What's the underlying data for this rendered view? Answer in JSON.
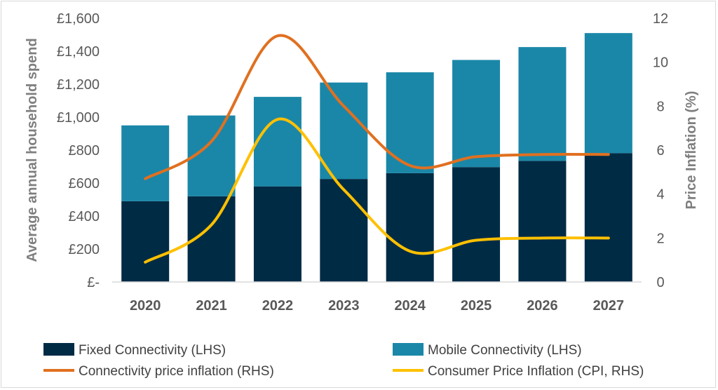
{
  "chart_data": {
    "type": "bar",
    "stacked": true,
    "categories": [
      "2020",
      "2021",
      "2022",
      "2023",
      "2024",
      "2025",
      "2026",
      "2027"
    ],
    "series": [
      {
        "name": "Fixed Connectivity (LHS)",
        "type": "bar",
        "axis": "left",
        "color": "#002b45",
        "values": [
          490,
          520,
          580,
          625,
          660,
          697,
          735,
          782
        ]
      },
      {
        "name": "Mobile Connectivity (LHS)",
        "type": "bar",
        "axis": "left",
        "color": "#1a87a8",
        "values": [
          460,
          490,
          543,
          585,
          612,
          650,
          690,
          728
        ]
      },
      {
        "name": "Connectivity price inflation (RHS)",
        "type": "line",
        "axis": "right",
        "color": "#e07020",
        "values": [
          4.7,
          6.4,
          11.2,
          8.0,
          5.3,
          5.7,
          5.8,
          5.8
        ]
      },
      {
        "name": "Consumer Price Inflation (CPI, RHS)",
        "type": "line",
        "axis": "right",
        "color": "#ffc000",
        "values": [
          0.9,
          2.6,
          7.4,
          4.2,
          1.4,
          1.9,
          2.0,
          2.0
        ]
      }
    ],
    "y_left": {
      "label": "Average annual household spend",
      "ylim": [
        0,
        1600
      ],
      "ticks": [
        0,
        200,
        400,
        600,
        800,
        1000,
        1200,
        1400,
        1600
      ],
      "tick_labels": [
        "£-",
        "£200",
        "£400",
        "£600",
        "£800",
        "£1,000",
        "£1,200",
        "£1,400",
        "£1,600"
      ]
    },
    "y_right": {
      "label": "Price Inflation (%)",
      "ylim": [
        0,
        12
      ],
      "ticks": [
        0,
        2,
        4,
        6,
        8,
        10,
        12
      ],
      "tick_labels": [
        "0",
        "2",
        "4",
        "6",
        "8",
        "10",
        "12"
      ]
    },
    "grid": false,
    "legend_position": "bottom"
  }
}
